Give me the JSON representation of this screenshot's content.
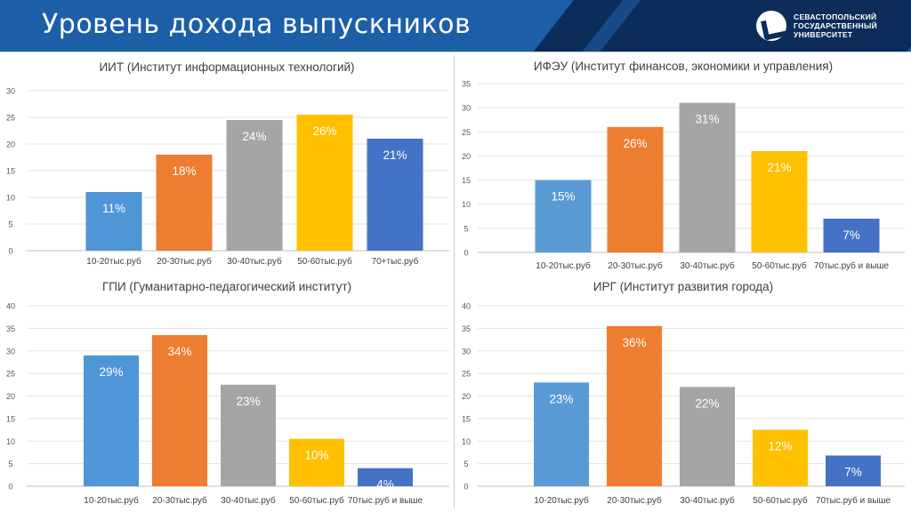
{
  "header": {
    "title": "Уровень дохода выпускников",
    "logo_lines": [
      "СЕВАСТОПОЛЬСКИЙ",
      "ГОСУДАРСТВЕННЫЙ",
      "УНИВЕРСИТЕТ"
    ]
  },
  "chart_data": [
    {
      "type": "bar",
      "title": "ИИТ (Институт информационных технологий)",
      "categories": [
        "10-20тыс.руб",
        "20-30тыс.руб",
        "30-40тыс.руб",
        "50-60тыс.руб",
        "70+тыс.руб"
      ],
      "values": [
        11,
        18,
        24.5,
        25.5,
        21
      ],
      "data_labels": [
        "11%",
        "18%",
        "24%",
        "26%",
        "21%"
      ],
      "colors": [
        "#4f96d6",
        "#ed7d31",
        "#a5a5a5",
        "#ffc000",
        "#4472c4"
      ],
      "ylim": [
        0,
        30
      ],
      "yticks": [
        0,
        5,
        10,
        15,
        20,
        25,
        30
      ],
      "grid": true
    },
    {
      "type": "bar",
      "title": "ИФЭУ (Институт финансов, экономики и управления)",
      "categories": [
        "10-20тыс.руб",
        "20-30тыс.руб",
        "30-40тыс.руб",
        "50-60тыс.руб",
        "70тыс.руб и выше"
      ],
      "values": [
        15,
        26,
        31,
        21,
        7
      ],
      "data_labels": [
        "15%",
        "26%",
        "31%",
        "21%",
        "7%"
      ],
      "colors": [
        "#5b9bd5",
        "#ed7d31",
        "#a5a5a5",
        "#ffc000",
        "#4472c4"
      ],
      "ylim": [
        0,
        35
      ],
      "yticks": [
        0,
        5,
        10,
        15,
        20,
        25,
        30,
        35
      ],
      "grid": true
    },
    {
      "type": "bar",
      "title": "ГПИ (Гуманитарно-педагогический институт)",
      "categories": [
        "10-20тыс.руб",
        "20-30тыс.руб",
        "30-40тыс.руб",
        "50-60тыс.руб",
        "70тыс.руб и выше"
      ],
      "values": [
        29,
        33.5,
        22.5,
        10.5,
        4
      ],
      "data_labels": [
        "29%",
        "34%",
        "23%",
        "10%",
        "4%"
      ],
      "colors": [
        "#4f96d6",
        "#ed7d31",
        "#a5a5a5",
        "#ffc000",
        "#4472c4"
      ],
      "ylim": [
        0,
        40
      ],
      "yticks": [
        0,
        5,
        10,
        15,
        20,
        25,
        30,
        35,
        40
      ],
      "grid": true
    },
    {
      "type": "bar",
      "title": "ИРГ (Институт развития города)",
      "categories": [
        "10-20тыс.руб",
        "20-30тыс.руб",
        "30-40тыс.руб",
        "50-60тыс.руб",
        "70тыс.руб и выше"
      ],
      "values": [
        23,
        35.5,
        22,
        12.5,
        6.8
      ],
      "data_labels": [
        "23%",
        "36%",
        "22%",
        "12%",
        "7%"
      ],
      "colors": [
        "#5b9bd5",
        "#ed7d31",
        "#a5a5a5",
        "#ffc000",
        "#4472c4"
      ],
      "ylim": [
        0,
        40
      ],
      "yticks": [
        0,
        5,
        10,
        15,
        20,
        25,
        30,
        35,
        40
      ],
      "grid": true
    }
  ]
}
